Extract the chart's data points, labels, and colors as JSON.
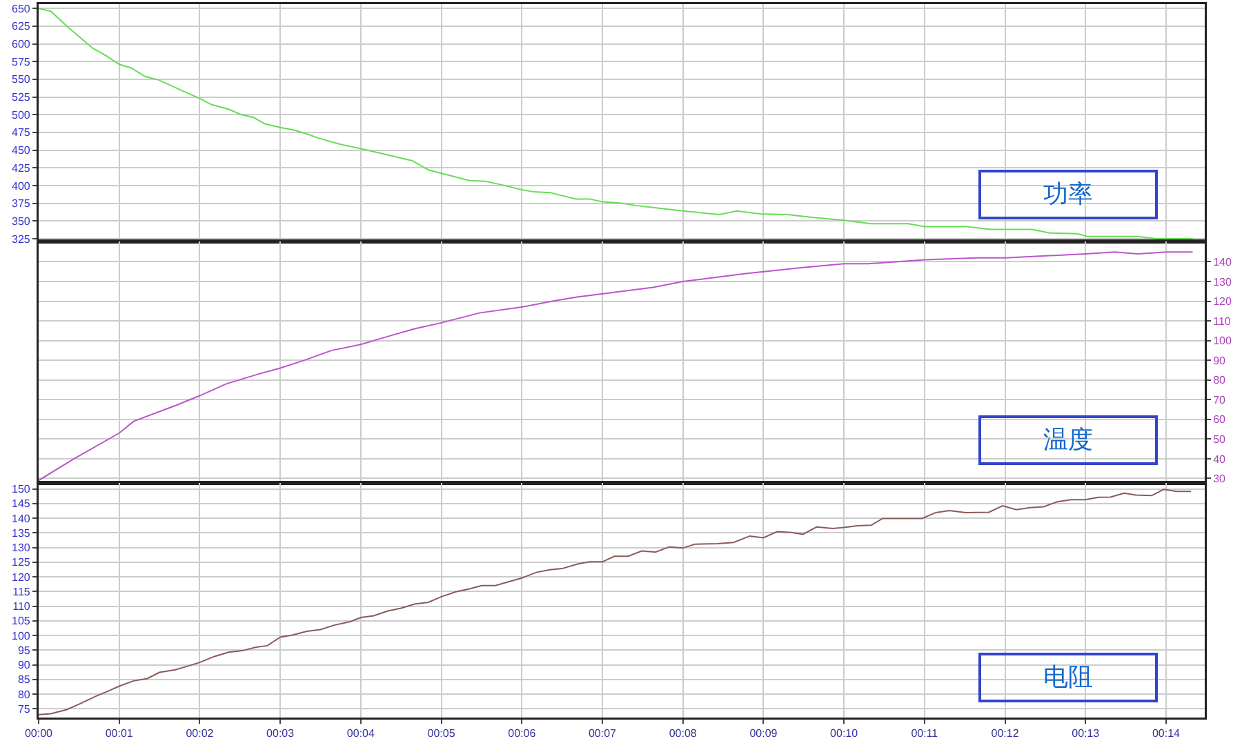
{
  "chart_data": [
    {
      "type": "line",
      "title": "功率",
      "grid": true,
      "tick_labels": "y",
      "xlim": [
        0,
        14.48
      ],
      "xticks": [
        {
          "value": 0,
          "label": null
        },
        {
          "value": 1,
          "label": null
        },
        {
          "value": 2,
          "label": null
        },
        {
          "value": 3,
          "label": null
        },
        {
          "value": 4,
          "label": null
        },
        {
          "value": 5,
          "label": null
        },
        {
          "value": 6,
          "label": null
        },
        {
          "value": 7,
          "label": null
        },
        {
          "value": 8,
          "label": null
        },
        {
          "value": 9,
          "label": null
        },
        {
          "value": 10,
          "label": null
        },
        {
          "value": 11,
          "label": null
        },
        {
          "value": 12,
          "label": null
        },
        {
          "value": 13,
          "label": null
        },
        {
          "value": 14,
          "label": null
        }
      ],
      "ylim": [
        321,
        656
      ],
      "yticks": [
        325,
        350,
        375,
        400,
        425,
        450,
        475,
        500,
        525,
        550,
        575,
        600,
        625,
        650
      ],
      "series": [
        {
          "color": "#66dd55",
          "x": [
            0,
            0.15,
            0.38,
            0.67,
            0.84,
            1.0,
            1.15,
            1.32,
            1.49,
            1.8,
            2.0,
            2.15,
            2.35,
            2.52,
            2.67,
            2.81,
            3.0,
            3.18,
            3.35,
            3.5,
            3.75,
            4.0,
            4.27,
            4.64,
            4.84,
            5.01,
            5.35,
            5.55,
            5.75,
            6.0,
            6.15,
            6.35,
            6.67,
            6.84,
            7.0,
            7.24,
            7.4,
            7.7,
            8.0,
            8.45,
            8.67,
            8.96,
            9.3,
            9.6,
            10.0,
            10.33,
            10.8,
            11.0,
            11.53,
            11.82,
            12.33,
            12.56,
            12.9,
            13.02,
            13.65,
            13.88,
            14.33
          ],
          "values": [
            650,
            646,
            622,
            594,
            583,
            571,
            566,
            554,
            549,
            533,
            523,
            514,
            508,
            500,
            496,
            487,
            482,
            478,
            472,
            466,
            458,
            452,
            445,
            435,
            422,
            417,
            407,
            406,
            401,
            394,
            391,
            390,
            381,
            381,
            377,
            375,
            372,
            368,
            364,
            359,
            364,
            360,
            359,
            355,
            351,
            346,
            346,
            342,
            342,
            338,
            338,
            333,
            332,
            328,
            328,
            325,
            325
          ]
        }
      ]
    },
    {
      "type": "line",
      "title": "温度",
      "grid": true,
      "tick_labels": "y",
      "xlim": [
        0,
        14.48
      ],
      "xticks": [
        {
          "value": 0,
          "label": null
        },
        {
          "value": 1,
          "label": null
        },
        {
          "value": 2,
          "label": null
        },
        {
          "value": 3,
          "label": null
        },
        {
          "value": 4,
          "label": null
        },
        {
          "value": 5,
          "label": null
        },
        {
          "value": 6,
          "label": null
        },
        {
          "value": 7,
          "label": null
        },
        {
          "value": 8,
          "label": null
        },
        {
          "value": 9,
          "label": null
        },
        {
          "value": 10,
          "label": null
        },
        {
          "value": 11,
          "label": null
        },
        {
          "value": 12,
          "label": null
        },
        {
          "value": 13,
          "label": null
        },
        {
          "value": 14,
          "label": null
        }
      ],
      "y2lim": [
        27.7,
        150.3
      ],
      "y2ticks": [
        30,
        40,
        50,
        60,
        70,
        80,
        90,
        100,
        110,
        120,
        130,
        140
      ],
      "series": [
        {
          "color": "#bb55cc",
          "axis": "y2",
          "x": [
            0,
            0.44,
            1.0,
            1.18,
            1.7,
            2.0,
            2.33,
            2.73,
            3.0,
            3.3,
            3.64,
            4.0,
            4.33,
            4.67,
            5.0,
            5.47,
            6.0,
            6.38,
            6.67,
            7.06,
            7.63,
            8.0,
            8.78,
            9.47,
            10.0,
            10.3,
            11.0,
            11.65,
            12.0,
            13.0,
            13.36,
            13.65,
            14.0,
            14.33
          ],
          "values": [
            29,
            40,
            53,
            59,
            67,
            72,
            78,
            83,
            86,
            90,
            95,
            98,
            102,
            106,
            109,
            114,
            117,
            120,
            122,
            124,
            127,
            130,
            134,
            137,
            139,
            139,
            141,
            142,
            142,
            144,
            145,
            144,
            145,
            145
          ]
        }
      ]
    },
    {
      "type": "line",
      "title": "电阻",
      "grid": true,
      "xlim": [
        0,
        14.48
      ],
      "xticks": [
        {
          "value": 0,
          "label": "00:00"
        },
        {
          "value": 1,
          "label": "00:01"
        },
        {
          "value": 2,
          "label": "00:02"
        },
        {
          "value": 3,
          "label": "00:03"
        },
        {
          "value": 4,
          "label": "00:04"
        },
        {
          "value": 5,
          "label": "00:05"
        },
        {
          "value": 6,
          "label": "00:06"
        },
        {
          "value": 7,
          "label": "00:07"
        },
        {
          "value": 8,
          "label": "00:08"
        },
        {
          "value": 9,
          "label": "00:09"
        },
        {
          "value": 10,
          "label": "00:10"
        },
        {
          "value": 11,
          "label": "00:11"
        },
        {
          "value": 12,
          "label": "00:12"
        },
        {
          "value": 13,
          "label": "00:13"
        },
        {
          "value": 14,
          "label": "00:14"
        }
      ],
      "ylim": [
        72,
        152
      ],
      "yticks": [
        75,
        80,
        85,
        90,
        95,
        100,
        105,
        110,
        115,
        120,
        125,
        130,
        135,
        140,
        145,
        150
      ],
      "series": [
        {
          "color": "#8b5a5a",
          "x": [
            0,
            0.15,
            0.35,
            0.52,
            0.72,
            0.87,
            1.0,
            1.18,
            1.35,
            1.5,
            1.7,
            2.0,
            2.19,
            2.36,
            2.53,
            2.7,
            2.84,
            3.0,
            3.15,
            3.33,
            3.5,
            3.67,
            3.87,
            4.0,
            4.16,
            4.33,
            4.5,
            4.67,
            4.84,
            5.0,
            5.18,
            5.35,
            5.5,
            5.67,
            6.0,
            6.18,
            6.35,
            6.5,
            6.7,
            6.84,
            7.0,
            7.15,
            7.32,
            7.49,
            7.66,
            7.83,
            8.0,
            8.15,
            8.43,
            8.63,
            8.83,
            9.0,
            9.17,
            9.35,
            9.49,
            9.66,
            9.86,
            10.0,
            10.17,
            10.34,
            10.48,
            10.97,
            11.14,
            11.31,
            11.51,
            11.8,
            11.97,
            12.14,
            12.31,
            12.48,
            12.65,
            12.82,
            13.0,
            13.16,
            13.31,
            13.48,
            13.62,
            13.82,
            13.97,
            14.13,
            14.31
          ],
          "values": [
            73,
            73.3,
            74.7,
            76.8,
            79.4,
            81.1,
            82.7,
            84.5,
            85.3,
            87.4,
            88.3,
            90.8,
            92.9,
            94.3,
            94.8,
            96,
            96.5,
            99.4,
            100.1,
            101.4,
            102,
            103.5,
            104.7,
            106.1,
            106.7,
            108.3,
            109.3,
            110.7,
            111.3,
            113.2,
            114.9,
            115.9,
            117,
            117,
            119.6,
            121.5,
            122.4,
            122.8,
            124.4,
            125.1,
            125.1,
            127,
            127,
            128.8,
            128.4,
            130.2,
            129.8,
            131.1,
            131.3,
            131.7,
            133.9,
            133.3,
            135.4,
            135.1,
            134.5,
            137,
            136.5,
            136.8,
            137.4,
            137.6,
            139.9,
            139.9,
            141.9,
            142.6,
            141.9,
            142,
            144.2,
            142.9,
            143.6,
            143.9,
            145.6,
            146.3,
            146.3,
            147.1,
            147.2,
            148.5,
            147.9,
            147.7,
            149.8,
            149.1,
            149.1
          ]
        }
      ]
    }
  ]
}
